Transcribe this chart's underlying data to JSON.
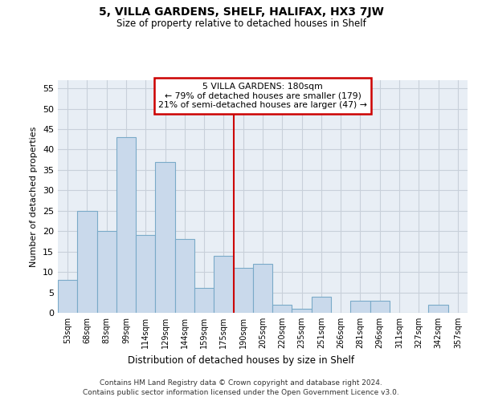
{
  "title": "5, VILLA GARDENS, SHELF, HALIFAX, HX3 7JW",
  "subtitle": "Size of property relative to detached houses in Shelf",
  "xlabel": "Distribution of detached houses by size in Shelf",
  "ylabel": "Number of detached properties",
  "categories": [
    "53sqm",
    "68sqm",
    "83sqm",
    "99sqm",
    "114sqm",
    "129sqm",
    "144sqm",
    "159sqm",
    "175sqm",
    "190sqm",
    "205sqm",
    "220sqm",
    "235sqm",
    "251sqm",
    "266sqm",
    "281sqm",
    "296sqm",
    "311sqm",
    "327sqm",
    "342sqm",
    "357sqm"
  ],
  "values": [
    8,
    25,
    20,
    43,
    19,
    37,
    18,
    6,
    14,
    11,
    12,
    2,
    1,
    4,
    0,
    3,
    3,
    0,
    0,
    2,
    0
  ],
  "bar_color": "#c9d9eb",
  "bar_edge_color": "#7aaac8",
  "grid_color": "#c8d0da",
  "background_color": "#e8eef5",
  "vline_x": 8.5,
  "vline_color": "#cc0000",
  "annotation_line1": "5 VILLA GARDENS: 180sqm",
  "annotation_line2": "← 79% of detached houses are smaller (179)",
  "annotation_line3": "21% of semi-detached houses are larger (47) →",
  "annotation_box_color": "#cc0000",
  "ylim": [
    0,
    57
  ],
  "yticks": [
    0,
    5,
    10,
    15,
    20,
    25,
    30,
    35,
    40,
    45,
    50,
    55
  ],
  "footnote1": "Contains HM Land Registry data © Crown copyright and database right 2024.",
  "footnote2": "Contains public sector information licensed under the Open Government Licence v3.0."
}
